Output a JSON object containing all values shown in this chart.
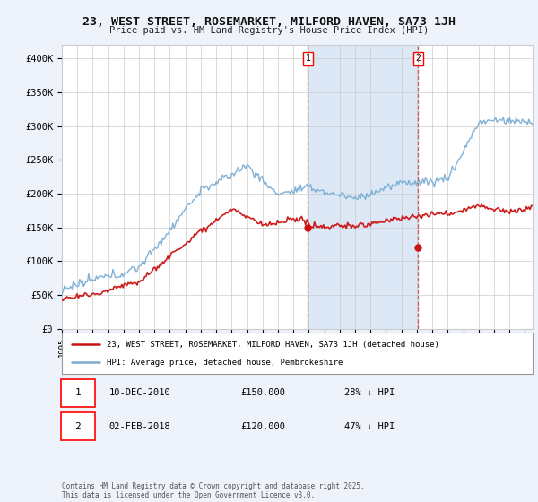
{
  "title": "23, WEST STREET, ROSEMARKET, MILFORD HAVEN, SA73 1JH",
  "subtitle": "Price paid vs. HM Land Registry's House Price Index (HPI)",
  "background_color": "#eef2fa",
  "plot_bg_color": "#ffffff",
  "hpi_color": "#7aadd4",
  "price_color": "#cc1111",
  "shade_color": "#dce8f5",
  "sale1_date_x": 2010.94,
  "sale1_price": 150000,
  "sale2_date_x": 2018.09,
  "sale2_price": 120000,
  "ylim": [
    0,
    420000
  ],
  "yticks": [
    0,
    50000,
    100000,
    150000,
    200000,
    250000,
    300000,
    350000,
    400000
  ],
  "ytick_labels": [
    "£0",
    "£50K",
    "£100K",
    "£150K",
    "£200K",
    "£250K",
    "£300K",
    "£350K",
    "£400K"
  ],
  "xmin": 1995.0,
  "xmax": 2025.5,
  "xtick_years": [
    1995,
    1996,
    1997,
    1998,
    1999,
    2000,
    2001,
    2002,
    2003,
    2004,
    2005,
    2006,
    2007,
    2008,
    2009,
    2010,
    2011,
    2012,
    2013,
    2014,
    2015,
    2016,
    2017,
    2018,
    2019,
    2020,
    2021,
    2022,
    2023,
    2024,
    2025
  ],
  "legend_line1": "23, WEST STREET, ROSEMARKET, MILFORD HAVEN, SA73 1JH (detached house)",
  "legend_line2": "HPI: Average price, detached house, Pembrokeshire",
  "table_row1": [
    "1",
    "10-DEC-2010",
    "£150,000",
    "28% ↓ HPI"
  ],
  "table_row2": [
    "2",
    "02-FEB-2018",
    "£120,000",
    "47% ↓ HPI"
  ],
  "footnote": "Contains HM Land Registry data © Crown copyright and database right 2025.\nThis data is licensed under the Open Government Licence v3.0."
}
